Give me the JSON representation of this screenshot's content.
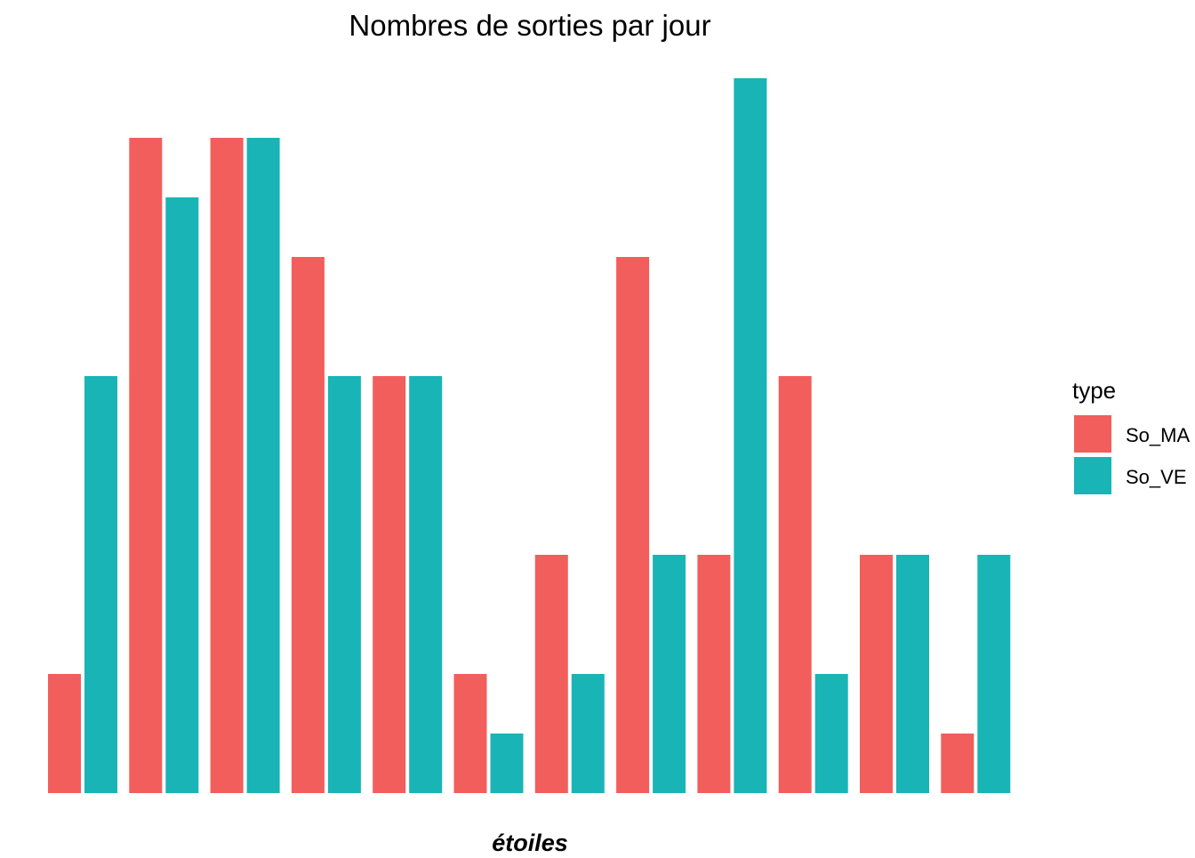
{
  "chart_data": {
    "type": "bar",
    "title": "Nombres de sorties par jour",
    "xlabel": "étoiles",
    "ylabel": "",
    "categories": [
      "",
      "",
      "",
      "",
      "",
      "",
      "",
      "",
      "",
      "",
      "",
      ""
    ],
    "series": [
      {
        "name": "So_MA",
        "color": "#F25E5B",
        "values": [
          2,
          11,
          11,
          9,
          7,
          2,
          4,
          9,
          4,
          7,
          4,
          1
        ]
      },
      {
        "name": "So_VE",
        "color": "#19B4B6",
        "values": [
          7,
          10,
          11,
          7,
          7,
          1,
          2,
          4,
          12,
          2,
          4,
          4
        ]
      }
    ],
    "ylim": [
      0,
      12
    ],
    "grid": false,
    "legend": {
      "title": "type",
      "placement": "right"
    }
  }
}
